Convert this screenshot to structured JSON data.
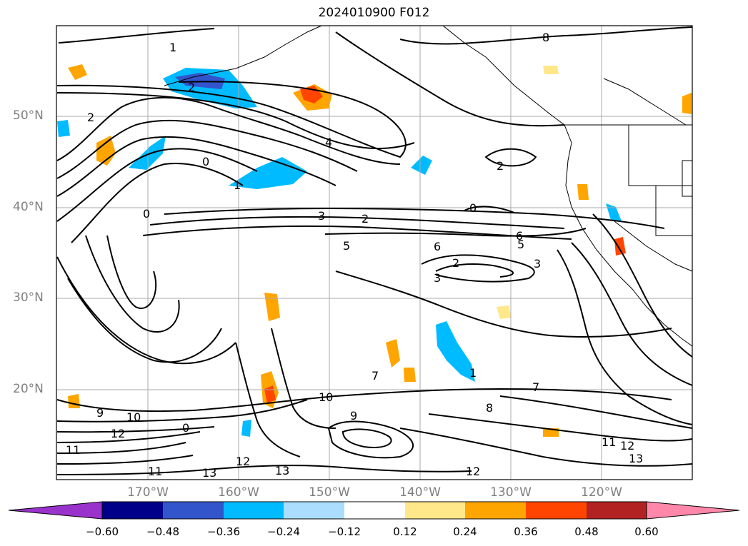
{
  "title": "2024010900 F012",
  "latitude_labels": [
    "50°N",
    "40°N",
    "30°N",
    "20°N"
  ],
  "longitude_labels": [
    "170°W",
    "160°W",
    "150°W",
    "140°W",
    "130°W",
    "120°W"
  ],
  "colorbar": {
    "ticks": [
      "−0.60",
      "−0.48",
      "−0.36",
      "−0.24",
      "−0.12",
      "0.12",
      "0.24",
      "0.36",
      "0.48",
      "0.60"
    ],
    "colors": [
      "#9933cc",
      "#000088",
      "#3355cc",
      "#00bbff",
      "#aaddff",
      "#ffffff",
      "#ffe88a",
      "#ffa500",
      "#ff4500",
      "#b22222",
      "#ff88aa"
    ]
  },
  "contour_labels": [
    "1",
    "2",
    "2",
    "0",
    "4",
    "1",
    "0",
    "2",
    "3",
    "5",
    "6",
    "2",
    "3",
    "7",
    "8",
    "9",
    "10",
    "12",
    "11",
    "13",
    "12",
    "11",
    "13",
    "12",
    "11",
    "12",
    "13",
    "9",
    "10",
    "0",
    "6",
    "5",
    "3",
    "2",
    "1",
    "0",
    "7",
    "8"
  ]
}
